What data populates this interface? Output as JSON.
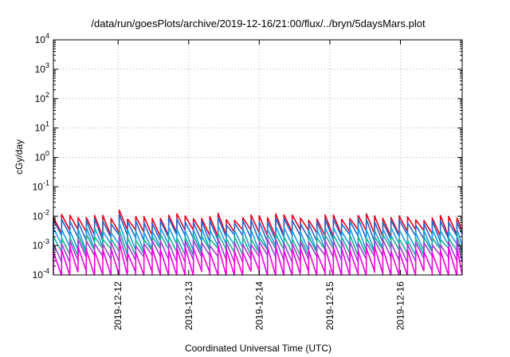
{
  "chart_data": {
    "type": "line",
    "title": "/data/run/goesPlots/archive/2019-12-16/21:00/flux/../bryn/5daysMars.plot",
    "xlabel": "Coordinated Universal Time (UTC)",
    "ylabel": "cGy/day",
    "yscale": "log",
    "ylim": [
      0.0001,
      10000
    ],
    "xlim": [
      "2019-12-11 02:00",
      "2019-12-16 21:00"
    ],
    "x_ticks": [
      "2019-12-12",
      "2019-12-13",
      "2019-12-14",
      "2019-12-15",
      "2019-12-16"
    ],
    "y_ticks": [
      {
        "base": "10",
        "exp": "-4"
      },
      {
        "base": "10",
        "exp": "-3"
      },
      {
        "base": "10",
        "exp": "-2"
      },
      {
        "base": "10",
        "exp": "-1"
      },
      {
        "base": "10",
        "exp": "0"
      },
      {
        "base": "10",
        "exp": "1"
      },
      {
        "base": "10",
        "exp": "2"
      },
      {
        "base": "10",
        "exp": "3"
      },
      {
        "base": "10",
        "exp": "4"
      }
    ],
    "grid": true,
    "sawtooth_period_hours": 2.8,
    "series": [
      {
        "color": "#e8001c",
        "peak": 0.0092,
        "trough": 0.0027
      },
      {
        "color": "#2864c8",
        "peak": 0.0066,
        "trough": 0.0018
      },
      {
        "color": "#1e9ae6",
        "peak": 0.0034,
        "trough": 0.00088
      },
      {
        "color": "#1fae9a",
        "peak": 0.0019,
        "trough": 0.00062
      },
      {
        "color": "#a040d0",
        "peak": 0.00125,
        "trough": 0.00036
      },
      {
        "color": "#f000e0",
        "peak": 0.00072,
        "trough": 0.00011
      }
    ],
    "spikes": [
      {
        "at": "2019-12-12 00:00",
        "value": 0.016
      },
      {
        "at": "2019-12-13 10:00",
        "value": 0.0125
      },
      {
        "at": "2019-12-14 06:00",
        "value": 0.012
      },
      {
        "at": "2019-12-15 00:00",
        "value": 0.011
      }
    ]
  }
}
